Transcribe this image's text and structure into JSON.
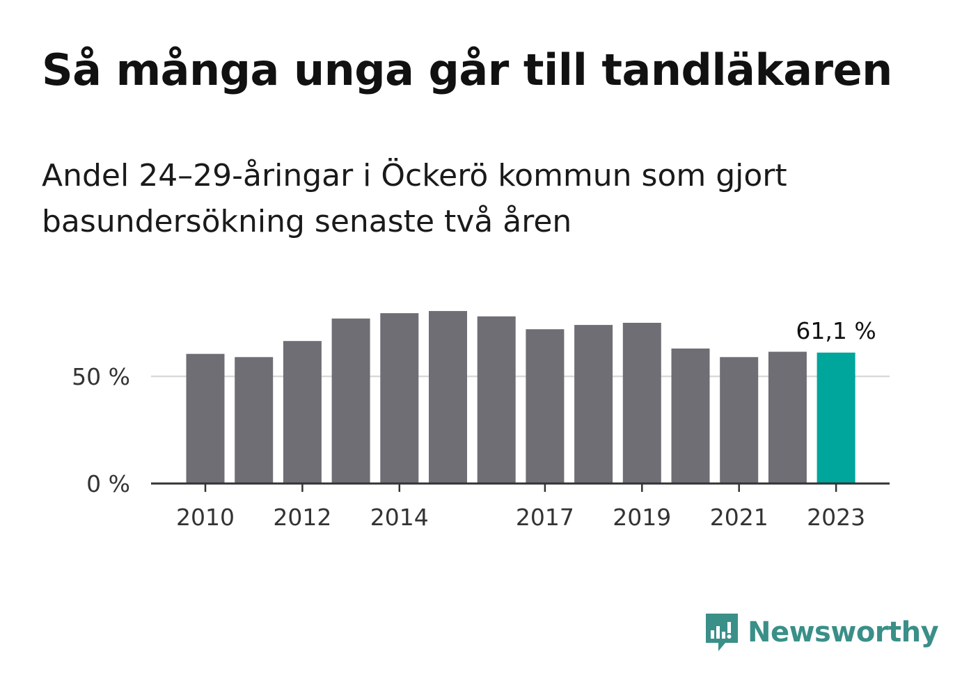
{
  "title": "Så många unga går till tandläkaren",
  "subtitle": "Andel 24–29-åringar i Öckerö kommun som gjort basundersökning senaste två åren",
  "brand": {
    "name": "Newsworthy",
    "color": "#3a8f88"
  },
  "colors": {
    "bar": "#6f6e74",
    "highlight": "#00a59b",
    "grid": "#d9d9d9",
    "axis": "#333333"
  },
  "chart_data": {
    "type": "bar",
    "categories": [
      "2010",
      "2011",
      "2012",
      "2013",
      "2014",
      "2015",
      "2016",
      "2017",
      "2018",
      "2019",
      "2020",
      "2021",
      "2022",
      "2023"
    ],
    "values": [
      60.5,
      59.0,
      66.5,
      77.0,
      79.5,
      80.5,
      78.0,
      72.0,
      74.0,
      75.0,
      63.0,
      59.0,
      61.5,
      61.1
    ],
    "x_tick_labels": [
      "2010",
      "2012",
      "2014",
      "2017",
      "2019",
      "2021",
      "2023"
    ],
    "y_ticks": [
      {
        "value": 0,
        "label": "0 %"
      },
      {
        "value": 50,
        "label": "50 %"
      }
    ],
    "ylim": [
      0,
      100
    ],
    "highlight_index": 13,
    "highlight_label": "61,1 %",
    "grid": true
  }
}
